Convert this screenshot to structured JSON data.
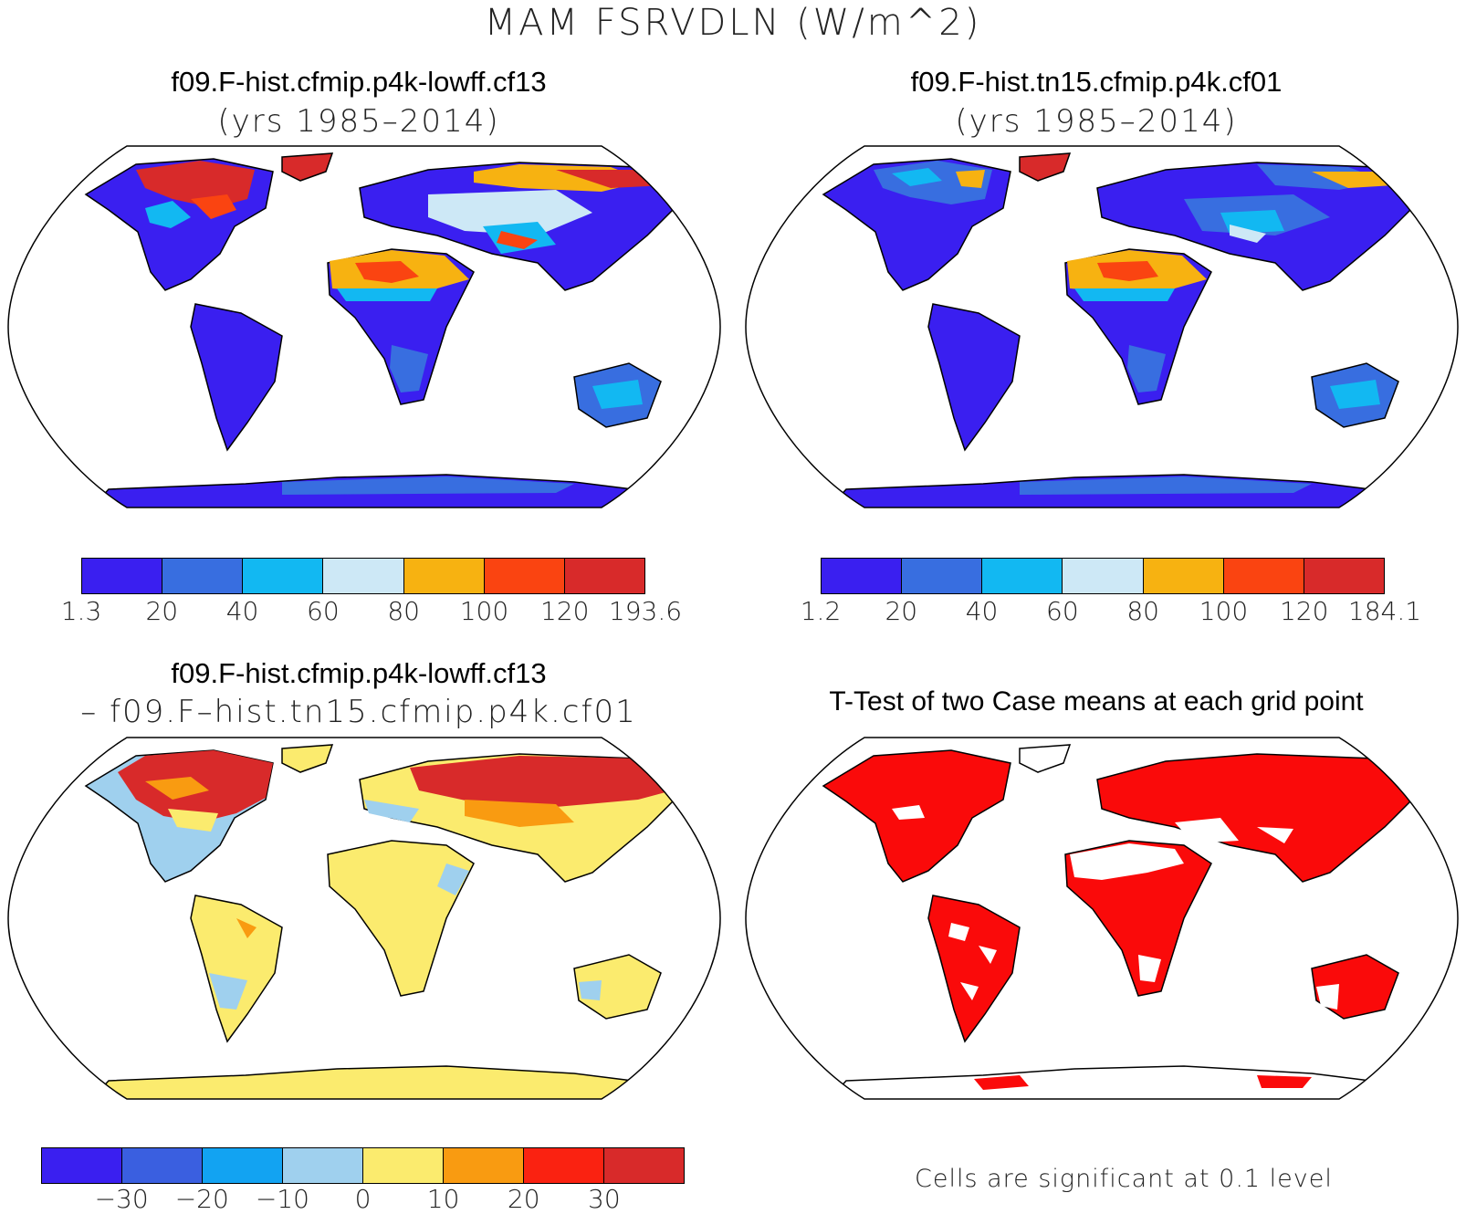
{
  "title": "MAM FSRVDLN (W/m^2)",
  "panels": {
    "top_left": {
      "case": "f09.F-hist.cfmip.p4k-lowff.cf13",
      "years": "(yrs 1985–2014)",
      "colorbar": {
        "colors": [
          "#3a1ff0",
          "#386ee0",
          "#12b8f2",
          "#cde8f6",
          "#f7b211",
          "#fa4411",
          "#d82a2a"
        ],
        "labels": [
          "1.3",
          "20",
          "40",
          "60",
          "80",
          "100",
          "120",
          "193.6"
        ]
      }
    },
    "top_right": {
      "case": "f09.F-hist.tn15.cfmip.p4k.cf01",
      "years": "(yrs 1985–2014)",
      "colorbar": {
        "colors": [
          "#3a1ff0",
          "#386ee0",
          "#12b8f2",
          "#cde8f6",
          "#f7b211",
          "#fa4411",
          "#d82a2a"
        ],
        "labels": [
          "1.2",
          "20",
          "40",
          "60",
          "80",
          "100",
          "120",
          "184.1"
        ]
      }
    },
    "bottom_left": {
      "case": "f09.F-hist.cfmip.p4k-lowff.cf13",
      "minus_case": "– f09.F–hist.tn15.cfmip.p4k.cf01",
      "colorbar": {
        "colors": [
          "#3a1ff0",
          "#3a5fe0",
          "#12a3f2",
          "#9fd0ee",
          "#fbeb6e",
          "#f99b11",
          "#fa2211",
          "#d82a2a"
        ],
        "labels": [
          "−30",
          "−20",
          "−10",
          "0",
          "10",
          "20",
          "30"
        ]
      }
    },
    "bottom_right": {
      "title": "T-Test of two Case means at each grid point",
      "note": "Cells are significant at 0.1 level"
    }
  }
}
